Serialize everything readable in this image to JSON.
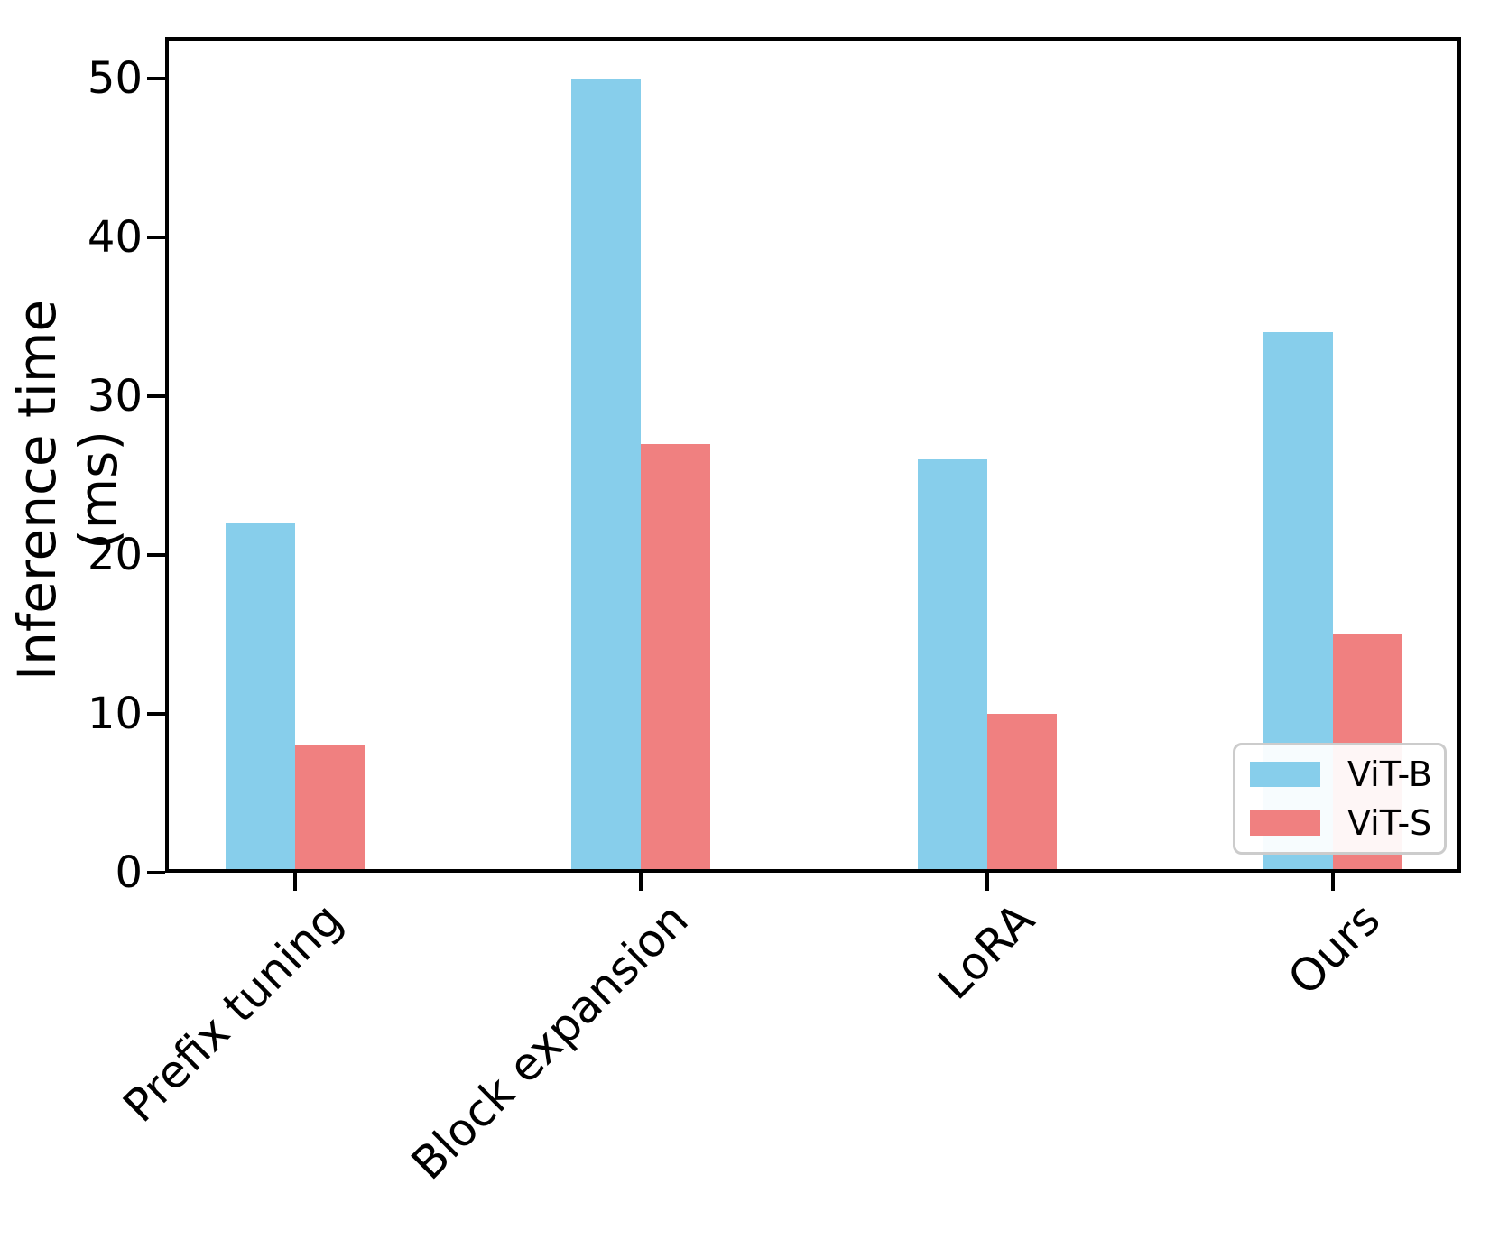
{
  "figure": {
    "background_color": "#ffffff",
    "axis_color": "#000000"
  },
  "chart_data": {
    "type": "bar",
    "title": "",
    "xlabel": "",
    "ylabel": "Inference time (ms)",
    "categories": [
      "Prefix tuning",
      "Block expansion",
      "LoRA",
      "Ours"
    ],
    "series": [
      {
        "name": "ViT-B",
        "color": "#87CEEB",
        "values": [
          22,
          50,
          26,
          34
        ]
      },
      {
        "name": "ViT-S",
        "color": "#F08080",
        "values": [
          8,
          27,
          10,
          15
        ]
      }
    ],
    "ylim": [
      0,
      52.6
    ],
    "yticks": [
      0,
      10,
      20,
      30,
      40,
      50
    ],
    "ytick_labels": [
      "0",
      "10",
      "20",
      "30",
      "40",
      "50"
    ],
    "xtick_rotation_deg": 45,
    "grid": false,
    "legend": {
      "position": "lower right",
      "entries": [
        "ViT-B",
        "ViT-S"
      ]
    }
  }
}
